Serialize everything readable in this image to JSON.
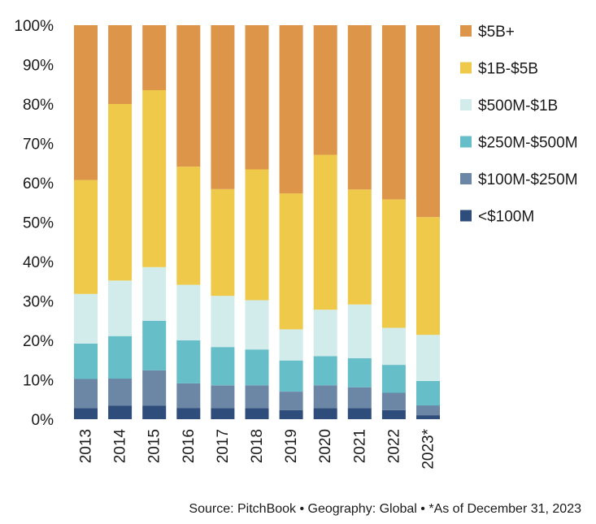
{
  "chart_data": {
    "type": "bar",
    "stacked": true,
    "percent": true,
    "categories": [
      "2013",
      "2014",
      "2015",
      "2016",
      "2017",
      "2018",
      "2019",
      "2020",
      "2021",
      "2022",
      "2023*"
    ],
    "series": [
      {
        "name": "<$100M",
        "color": "#2e4d7b",
        "values": [
          2.8,
          3.4,
          3.4,
          2.8,
          2.8,
          2.8,
          2.3,
          2.8,
          2.8,
          2.3,
          1.0
        ]
      },
      {
        "name": "$100M-$250M",
        "color": "#6b87a5",
        "values": [
          7.4,
          6.9,
          9.0,
          6.3,
          5.8,
          5.8,
          4.7,
          5.8,
          5.3,
          4.4,
          2.5
        ]
      },
      {
        "name": "$250M-$500M",
        "color": "#65bec8",
        "values": [
          9.0,
          10.8,
          12.6,
          10.9,
          9.7,
          9.1,
          7.9,
          7.4,
          7.4,
          7.1,
          6.2
        ]
      },
      {
        "name": "$500M-$1B",
        "color": "#d2ecec",
        "values": [
          12.6,
          14.1,
          13.6,
          14.1,
          13.0,
          12.5,
          7.9,
          11.8,
          13.6,
          9.4,
          11.7
        ]
      },
      {
        "name": "$1B-$5B",
        "color": "#eec94a",
        "values": [
          28.9,
          44.8,
          44.9,
          30.0,
          27.1,
          33.2,
          34.5,
          39.3,
          29.2,
          32.6,
          29.9
        ]
      },
      {
        "name": "$5B+",
        "color": "#dd954a",
        "values": [
          39.3,
          20.0,
          16.5,
          35.9,
          41.6,
          36.6,
          42.7,
          32.9,
          41.7,
          44.2,
          48.7
        ]
      }
    ],
    "yticks": [
      "0%",
      "10%",
      "20%",
      "30%",
      "40%",
      "50%",
      "60%",
      "70%",
      "80%",
      "90%",
      "100%"
    ],
    "ylim": [
      0,
      100
    ],
    "legend_position": "right",
    "grid": false
  },
  "source_note": "Source: PitchBook  •  Geography: Global  •  *As of December 31, 2023"
}
